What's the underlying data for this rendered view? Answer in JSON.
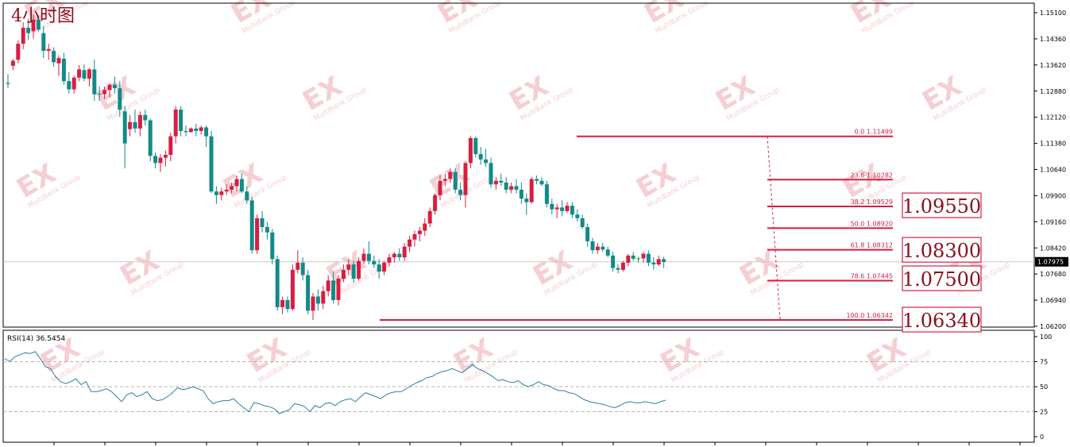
{
  "chart_title": "4小时图",
  "watermark": {
    "text": "EX",
    "subtext": "MultiBank Group",
    "color": "#f4c7cc"
  },
  "colors": {
    "bull": "#d81e42",
    "bear": "#138a8a",
    "doji": "#2ca02c",
    "fib": "#d81e42",
    "rsi": "#2f7fa6",
    "frame": "#000000"
  },
  "price_panel": {
    "y_ticks": [
      "1.15100",
      "1.14360",
      "1.13620",
      "1.12880",
      "1.12120",
      "1.11380",
      "1.10640",
      "1.09900",
      "1.09160",
      "1.08420",
      "1.07680",
      "1.06940",
      "1.06200"
    ],
    "y_range": [
      1.0614,
      1.1524
    ],
    "current_price": "1.07975",
    "current_value": 1.07975
  },
  "fib_levels": [
    {
      "label": "0.0  1.11499",
      "value": 1.11499
    },
    {
      "label": "23.6  1.10282",
      "value": 1.10282
    },
    {
      "label": "38.2  1.09529",
      "value": 1.09529
    },
    {
      "label": "50.0  1.08920",
      "value": 1.0892
    },
    {
      "label": "61.8  1.08312",
      "value": 1.08312
    },
    {
      "label": "78.6  1.07445",
      "value": 1.07445
    },
    {
      "label": "100.0  1.06342",
      "value": 1.06342
    }
  ],
  "key_levels": [
    {
      "label": "1.09550",
      "value": 1.0955
    },
    {
      "label": "1.08300",
      "value": 1.083
    },
    {
      "label": "1.07500",
      "value": 1.075
    },
    {
      "label": "1.06340",
      "value": 1.0634
    }
  ],
  "rsi_panel": {
    "label": "RSI(14) 36.5454",
    "y_ticks": [
      "100",
      "75",
      "50",
      "25",
      "0"
    ],
    "levels": [
      75,
      50,
      25
    ]
  },
  "chart_data": {
    "type": "candlestick",
    "title": "4小时图",
    "ylim": [
      1.0614,
      1.1524
    ],
    "candles": [
      {
        "o": 1.13,
        "h": 1.1325,
        "l": 1.1285,
        "c": 1.1297
      },
      {
        "o": 1.1348,
        "h": 1.1367,
        "l": 1.1336,
        "c": 1.1362
      },
      {
        "o": 1.1365,
        "h": 1.142,
        "l": 1.1355,
        "c": 1.141
      },
      {
        "o": 1.141,
        "h": 1.147,
        "l": 1.1395,
        "c": 1.1455
      },
      {
        "o": 1.1455,
        "h": 1.148,
        "l": 1.142,
        "c": 1.144
      },
      {
        "o": 1.1445,
        "h": 1.1492,
        "l": 1.1425,
        "c": 1.1478
      },
      {
        "o": 1.1478,
        "h": 1.149,
        "l": 1.1445,
        "c": 1.145
      },
      {
        "o": 1.144,
        "h": 1.146,
        "l": 1.137,
        "c": 1.139
      },
      {
        "o": 1.139,
        "h": 1.141,
        "l": 1.1365,
        "c": 1.1395
      },
      {
        "o": 1.139,
        "h": 1.14,
        "l": 1.1345,
        "c": 1.1358
      },
      {
        "o": 1.1355,
        "h": 1.1378,
        "l": 1.132,
        "c": 1.137
      },
      {
        "o": 1.1368,
        "h": 1.1385,
        "l": 1.1295,
        "c": 1.1305
      },
      {
        "o": 1.1305,
        "h": 1.133,
        "l": 1.127,
        "c": 1.1282
      },
      {
        "o": 1.1282,
        "h": 1.132,
        "l": 1.127,
        "c": 1.1315
      },
      {
        "o": 1.1315,
        "h": 1.135,
        "l": 1.1305,
        "c": 1.1338
      },
      {
        "o": 1.1336,
        "h": 1.1352,
        "l": 1.1305,
        "c": 1.1312
      },
      {
        "o": 1.1312,
        "h": 1.1342,
        "l": 1.129,
        "c": 1.1338
      },
      {
        "o": 1.1338,
        "h": 1.1365,
        "l": 1.125,
        "c": 1.1268
      },
      {
        "o": 1.127,
        "h": 1.129,
        "l": 1.125,
        "c": 1.1268
      },
      {
        "o": 1.1268,
        "h": 1.129,
        "l": 1.1255,
        "c": 1.128
      },
      {
        "o": 1.128,
        "h": 1.13,
        "l": 1.126,
        "c": 1.1295
      },
      {
        "o": 1.1295,
        "h": 1.1318,
        "l": 1.127,
        "c": 1.1285
      },
      {
        "o": 1.1285,
        "h": 1.1305,
        "l": 1.1205,
        "c": 1.1225
      },
      {
        "o": 1.122,
        "h": 1.1235,
        "l": 1.106,
        "c": 1.113
      },
      {
        "o": 1.117,
        "h": 1.121,
        "l": 1.115,
        "c": 1.119
      },
      {
        "o": 1.119,
        "h": 1.1225,
        "l": 1.116,
        "c": 1.1172
      },
      {
        "o": 1.1172,
        "h": 1.122,
        "l": 1.115,
        "c": 1.121
      },
      {
        "o": 1.121,
        "h": 1.1225,
        "l": 1.118,
        "c": 1.1195
      },
      {
        "o": 1.1195,
        "h": 1.12,
        "l": 1.108,
        "c": 1.1095
      },
      {
        "o": 1.1095,
        "h": 1.1105,
        "l": 1.106,
        "c": 1.1075
      },
      {
        "o": 1.1075,
        "h": 1.11,
        "l": 1.105,
        "c": 1.109
      },
      {
        "o": 1.109,
        "h": 1.111,
        "l": 1.1065,
        "c": 1.1098
      },
      {
        "o": 1.1098,
        "h": 1.116,
        "l": 1.108,
        "c": 1.115
      },
      {
        "o": 1.115,
        "h": 1.1235,
        "l": 1.113,
        "c": 1.1225
      },
      {
        "o": 1.1225,
        "h": 1.1235,
        "l": 1.115,
        "c": 1.1165
      },
      {
        "o": 1.1165,
        "h": 1.118,
        "l": 1.115,
        "c": 1.1162
      },
      {
        "o": 1.1162,
        "h": 1.1175,
        "l": 1.116,
        "c": 1.1172
      },
      {
        "o": 1.1172,
        "h": 1.1185,
        "l": 1.115,
        "c": 1.1165
      },
      {
        "o": 1.1165,
        "h": 1.118,
        "l": 1.1155,
        "c": 1.1175
      },
      {
        "o": 1.1175,
        "h": 1.118,
        "l": 1.112,
        "c": 1.115
      },
      {
        "o": 1.115,
        "h": 1.1165,
        "l": 1.099,
        "c": 1.0995
      },
      {
        "o": 1.0995,
        "h": 1.101,
        "l": 1.096,
        "c": 1.0985
      },
      {
        "o": 1.0985,
        "h": 1.1005,
        "l": 1.097,
        "c": 1.0995
      },
      {
        "o": 1.0995,
        "h": 1.1015,
        "l": 1.0985,
        "c": 1.1
      },
      {
        "o": 1.1,
        "h": 1.102,
        "l": 1.099,
        "c": 1.101
      },
      {
        "o": 1.101,
        "h": 1.104,
        "l": 1.0995,
        "c": 1.103
      },
      {
        "o": 1.103,
        "h": 1.1045,
        "l": 1.099,
        "c": 1.0995
      },
      {
        "o": 1.0995,
        "h": 1.101,
        "l": 1.096,
        "c": 1.097
      },
      {
        "o": 1.097,
        "h": 1.098,
        "l": 1.082,
        "c": 1.083
      },
      {
        "o": 1.083,
        "h": 1.093,
        "l": 1.082,
        "c": 1.092
      },
      {
        "o": 1.092,
        "h": 1.094,
        "l": 1.088,
        "c": 1.0895
      },
      {
        "o": 1.0895,
        "h": 1.091,
        "l": 1.086,
        "c": 1.088
      },
      {
        "o": 1.088,
        "h": 1.089,
        "l": 1.079,
        "c": 1.0805
      },
      {
        "o": 1.0805,
        "h": 1.0815,
        "l": 1.066,
        "c": 1.067
      },
      {
        "o": 1.067,
        "h": 1.07,
        "l": 1.065,
        "c": 1.069
      },
      {
        "o": 1.069,
        "h": 1.07,
        "l": 1.0655,
        "c": 1.0665
      },
      {
        "o": 1.0665,
        "h": 1.079,
        "l": 1.066,
        "c": 1.0775
      },
      {
        "o": 1.0775,
        "h": 1.083,
        "l": 1.0765,
        "c": 1.0795
      },
      {
        "o": 1.0795,
        "h": 1.081,
        "l": 1.0745,
        "c": 1.076
      },
      {
        "o": 1.076,
        "h": 1.0775,
        "l": 1.065,
        "c": 1.066
      },
      {
        "o": 1.066,
        "h": 1.071,
        "l": 1.0634,
        "c": 1.07
      },
      {
        "o": 1.07,
        "h": 1.072,
        "l": 1.066,
        "c": 1.068
      },
      {
        "o": 1.068,
        "h": 1.073,
        "l": 1.0665,
        "c": 1.0715
      },
      {
        "o": 1.0715,
        "h": 1.076,
        "l": 1.07,
        "c": 1.0745
      },
      {
        "o": 1.0745,
        "h": 1.077,
        "l": 1.068,
        "c": 1.069
      },
      {
        "o": 1.069,
        "h": 1.076,
        "l": 1.0675,
        "c": 1.075
      },
      {
        "o": 1.075,
        "h": 1.079,
        "l": 1.074,
        "c": 1.0775
      },
      {
        "o": 1.0775,
        "h": 1.0805,
        "l": 1.076,
        "c": 1.079
      },
      {
        "o": 1.079,
        "h": 1.08,
        "l": 1.074,
        "c": 1.075
      },
      {
        "o": 1.075,
        "h": 1.081,
        "l": 1.0745,
        "c": 1.08
      },
      {
        "o": 1.08,
        "h": 1.0835,
        "l": 1.079,
        "c": 1.082
      },
      {
        "o": 1.082,
        "h": 1.0855,
        "l": 1.079,
        "c": 1.08
      },
      {
        "o": 1.08,
        "h": 1.0815,
        "l": 1.078,
        "c": 1.079
      },
      {
        "o": 1.079,
        "h": 1.0805,
        "l": 1.075,
        "c": 1.077
      },
      {
        "o": 1.077,
        "h": 1.08,
        "l": 1.076,
        "c": 1.0795
      },
      {
        "o": 1.0795,
        "h": 1.082,
        "l": 1.0785,
        "c": 1.081
      },
      {
        "o": 1.081,
        "h": 1.0825,
        "l": 1.0795,
        "c": 1.082
      },
      {
        "o": 1.082,
        "h": 1.0835,
        "l": 1.08,
        "c": 1.081
      },
      {
        "o": 1.081,
        "h": 1.085,
        "l": 1.08,
        "c": 1.084
      },
      {
        "o": 1.084,
        "h": 1.087,
        "l": 1.0825,
        "c": 1.086
      },
      {
        "o": 1.086,
        "h": 1.0885,
        "l": 1.084,
        "c": 1.0875
      },
      {
        "o": 1.0875,
        "h": 1.0895,
        "l": 1.0855,
        "c": 1.0885
      },
      {
        "o": 1.0885,
        "h": 1.092,
        "l": 1.087,
        "c": 1.0905
      },
      {
        "o": 1.0905,
        "h": 1.095,
        "l": 1.0895,
        "c": 1.094
      },
      {
        "o": 1.094,
        "h": 1.099,
        "l": 1.093,
        "c": 1.0985
      },
      {
        "o": 1.0985,
        "h": 1.104,
        "l": 1.097,
        "c": 1.1025
      },
      {
        "o": 1.1025,
        "h": 1.1045,
        "l": 1.101,
        "c": 1.103
      },
      {
        "o": 1.103,
        "h": 1.106,
        "l": 1.102,
        "c": 1.105
      },
      {
        "o": 1.105,
        "h": 1.106,
        "l": 1.099,
        "c": 1.1
      },
      {
        "o": 1.1,
        "h": 1.102,
        "l": 1.097,
        "c": 1.0985
      },
      {
        "o": 1.0985,
        "h": 1.108,
        "l": 1.095,
        "c": 1.1075
      },
      {
        "o": 1.1075,
        "h": 1.115,
        "l": 1.106,
        "c": 1.1145
      },
      {
        "o": 1.1145,
        "h": 1.115,
        "l": 1.109,
        "c": 1.11
      },
      {
        "o": 1.11,
        "h": 1.112,
        "l": 1.107,
        "c": 1.1085
      },
      {
        "o": 1.1085,
        "h": 1.1115,
        "l": 1.1065,
        "c": 1.1075
      },
      {
        "o": 1.1075,
        "h": 1.109,
        "l": 1.1005,
        "c": 1.1015
      },
      {
        "o": 1.1015,
        "h": 1.1035,
        "l": 1.1,
        "c": 1.1025
      },
      {
        "o": 1.1025,
        "h": 1.1045,
        "l": 1.101,
        "c": 1.102
      },
      {
        "o": 1.102,
        "h": 1.1035,
        "l": 1.099,
        "c": 1.1
      },
      {
        "o": 1.1,
        "h": 1.102,
        "l": 1.099,
        "c": 1.101
      },
      {
        "o": 1.101,
        "h": 1.103,
        "l": 1.099,
        "c": 1.1
      },
      {
        "o": 1.1,
        "h": 1.102,
        "l": 1.096,
        "c": 1.0975
      },
      {
        "o": 1.0975,
        "h": 1.099,
        "l": 1.093,
        "c": 1.0965
      },
      {
        "o": 1.0965,
        "h": 1.1035,
        "l": 1.096,
        "c": 1.103
      },
      {
        "o": 1.103,
        "h": 1.104,
        "l": 1.1015,
        "c": 1.1025
      },
      {
        "o": 1.1025,
        "h": 1.1035,
        "l": 1.101,
        "c": 1.1015
      },
      {
        "o": 1.1015,
        "h": 1.1025,
        "l": 1.095,
        "c": 1.096
      },
      {
        "o": 1.096,
        "h": 1.0975,
        "l": 1.093,
        "c": 1.0945
      },
      {
        "o": 1.0945,
        "h": 1.096,
        "l": 1.092,
        "c": 1.095
      },
      {
        "o": 1.095,
        "h": 1.097,
        "l": 1.0925,
        "c": 1.094
      },
      {
        "o": 1.094,
        "h": 1.0965,
        "l": 1.0935,
        "c": 1.0955
      },
      {
        "o": 1.0955,
        "h": 1.0965,
        "l": 1.092,
        "c": 1.093
      },
      {
        "o": 1.093,
        "h": 1.0945,
        "l": 1.091,
        "c": 1.092
      },
      {
        "o": 1.092,
        "h": 1.093,
        "l": 1.089,
        "c": 1.0895
      },
      {
        "o": 1.0895,
        "h": 1.0905,
        "l": 1.084,
        "c": 1.0855
      },
      {
        "o": 1.0855,
        "h": 1.0865,
        "l": 1.082,
        "c": 1.083
      },
      {
        "o": 1.083,
        "h": 1.085,
        "l": 1.082,
        "c": 1.084
      },
      {
        "o": 1.084,
        "h": 1.085,
        "l": 1.0825,
        "c": 1.0832
      },
      {
        "o": 1.0832,
        "h": 1.084,
        "l": 1.081,
        "c": 1.0815
      },
      {
        "o": 1.0815,
        "h": 1.0825,
        "l": 1.077,
        "c": 1.078
      },
      {
        "o": 1.078,
        "h": 1.079,
        "l": 1.0765,
        "c": 1.0775
      },
      {
        "o": 1.0775,
        "h": 1.08,
        "l": 1.077,
        "c": 1.0795
      },
      {
        "o": 1.0795,
        "h": 1.082,
        "l": 1.0785,
        "c": 1.0815
      },
      {
        "o": 1.0815,
        "h": 1.0825,
        "l": 1.08,
        "c": 1.0806
      },
      {
        "o": 1.0806,
        "h": 1.0812,
        "l": 1.0795,
        "c": 1.0807
      },
      {
        "o": 1.0807,
        "h": 1.0825,
        "l": 1.0795,
        "c": 1.082
      },
      {
        "o": 1.082,
        "h": 1.083,
        "l": 1.0785,
        "c": 1.0795
      },
      {
        "o": 1.0795,
        "h": 1.081,
        "l": 1.0775,
        "c": 1.079
      },
      {
        "o": 1.079,
        "h": 1.0815,
        "l": 1.0785,
        "c": 1.0805
      },
      {
        "o": 1.0805,
        "h": 1.0812,
        "l": 1.078,
        "c": 1.0797
      }
    ],
    "rsi": [
      78,
      75,
      80,
      82,
      84,
      83,
      85,
      78,
      70,
      68,
      60,
      55,
      53,
      55,
      58,
      52,
      55,
      45,
      45,
      46,
      48,
      45,
      40,
      35,
      42,
      44,
      40,
      42,
      45,
      38,
      36,
      37,
      40,
      44,
      49,
      47,
      48,
      50,
      48,
      46,
      38,
      33,
      35,
      36,
      36,
      38,
      33,
      29,
      25,
      34,
      33,
      31,
      30,
      28,
      23,
      25,
      27,
      33,
      32,
      30,
      25,
      31,
      29,
      33,
      34,
      31,
      35,
      37,
      38,
      35,
      40,
      44,
      42,
      40,
      38,
      42,
      44,
      45,
      45,
      48,
      51,
      54,
      56,
      59,
      60,
      63,
      65,
      66,
      68,
      66,
      64,
      68,
      72,
      68,
      66,
      63,
      60,
      56,
      57,
      55,
      54,
      56,
      52,
      50,
      52,
      55,
      52,
      51,
      48,
      46,
      46,
      44,
      43,
      40,
      37,
      35,
      34,
      33,
      32,
      30,
      29,
      31,
      34,
      35,
      34,
      34,
      35,
      34,
      33,
      35,
      36.5454
    ]
  }
}
